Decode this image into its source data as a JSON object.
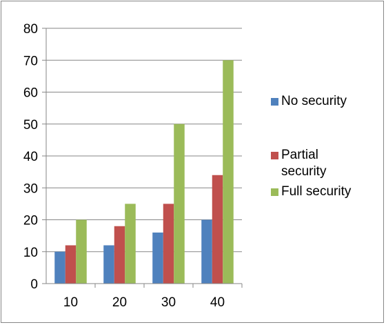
{
  "chart_data": {
    "type": "bar",
    "categories": [
      "10",
      "20",
      "30",
      "40"
    ],
    "series": [
      {
        "name": "No security",
        "values": [
          10,
          12,
          16,
          20
        ],
        "color": "#4F81BD"
      },
      {
        "name": "Partial security",
        "values": [
          12,
          18,
          25,
          34
        ],
        "color": "#C0504D"
      },
      {
        "name": "Full security",
        "values": [
          20,
          25,
          50,
          70
        ],
        "color": "#9BBB59"
      }
    ],
    "yticks": [
      "0",
      "10",
      "20",
      "30",
      "40",
      "50",
      "60",
      "70",
      "80"
    ],
    "ylim": [
      0,
      80
    ],
    "title": "",
    "xlabel": "",
    "ylabel": "",
    "grid": true,
    "legend_position": "right"
  }
}
